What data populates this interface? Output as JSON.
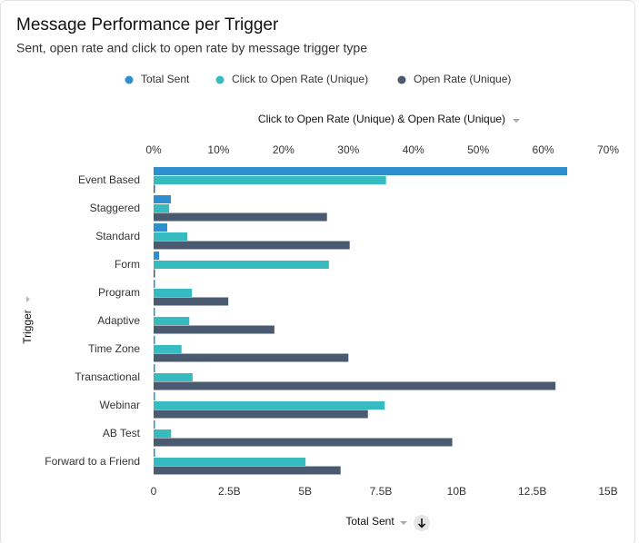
{
  "chart_data": {
    "type": "bar",
    "orientation": "horizontal",
    "title": "Message Performance per Trigger",
    "subtitle": "Sent, open rate and click to open rate by message trigger type",
    "x_label": "Total Sent",
    "x2_label": "Click to Open Rate (Unique) & Open Rate (Unique)",
    "y_label": "Trigger",
    "categories": [
      "Event Based",
      "Staggered",
      "Standard",
      "Form",
      "Program",
      "Adaptive",
      "Time Zone",
      "Transactional",
      "Webinar",
      "AB Test",
      "Forward to a Friend"
    ],
    "xlim": [
      0,
      15000000000
    ],
    "xticks": [
      0,
      {
        "value": 2500000000,
        "label": "2.5B"
      },
      {
        "value": 5000000000,
        "label": "5B"
      },
      {
        "value": 7500000000,
        "label": "7.5B"
      },
      {
        "value": 10000000000,
        "label": "10B"
      },
      {
        "value": 12500000000,
        "label": "12.5B"
      },
      {
        "value": 15000000000,
        "label": "15B"
      }
    ],
    "x2lim": [
      0,
      70
    ],
    "x2ticks": [
      {
        "value": 0,
        "label": "0%"
      },
      {
        "value": 10,
        "label": "10%"
      },
      {
        "value": 20,
        "label": "20%"
      },
      {
        "value": 30,
        "label": "30%"
      },
      {
        "value": 40,
        "label": "40%"
      },
      {
        "value": 50,
        "label": "50%"
      },
      {
        "value": 60,
        "label": "60%"
      },
      {
        "value": 70,
        "label": "70%"
      }
    ],
    "series": [
      {
        "name": "Total Sent",
        "color": "#2e8fcf",
        "axis": "x",
        "values": [
          13650000000,
          570000000,
          450000000,
          180000000,
          30000000,
          30000000,
          30000000,
          30000000,
          30000000,
          30000000,
          30000000
        ]
      },
      {
        "name": "Click to Open Rate (Unique)",
        "color": "#36bcc0",
        "axis": "x2",
        "values": [
          35.8,
          2.4,
          5.2,
          27,
          5.9,
          5.5,
          4.3,
          6,
          35.6,
          2.7,
          23.4
        ]
      },
      {
        "name": "Open Rate (Unique)",
        "color": "#4a5a70",
        "axis": "x2",
        "values": [
          0.2,
          26.7,
          30.2,
          0.1,
          11.5,
          18.6,
          30,
          61.9,
          33,
          46,
          28.8
        ]
      }
    ]
  }
}
